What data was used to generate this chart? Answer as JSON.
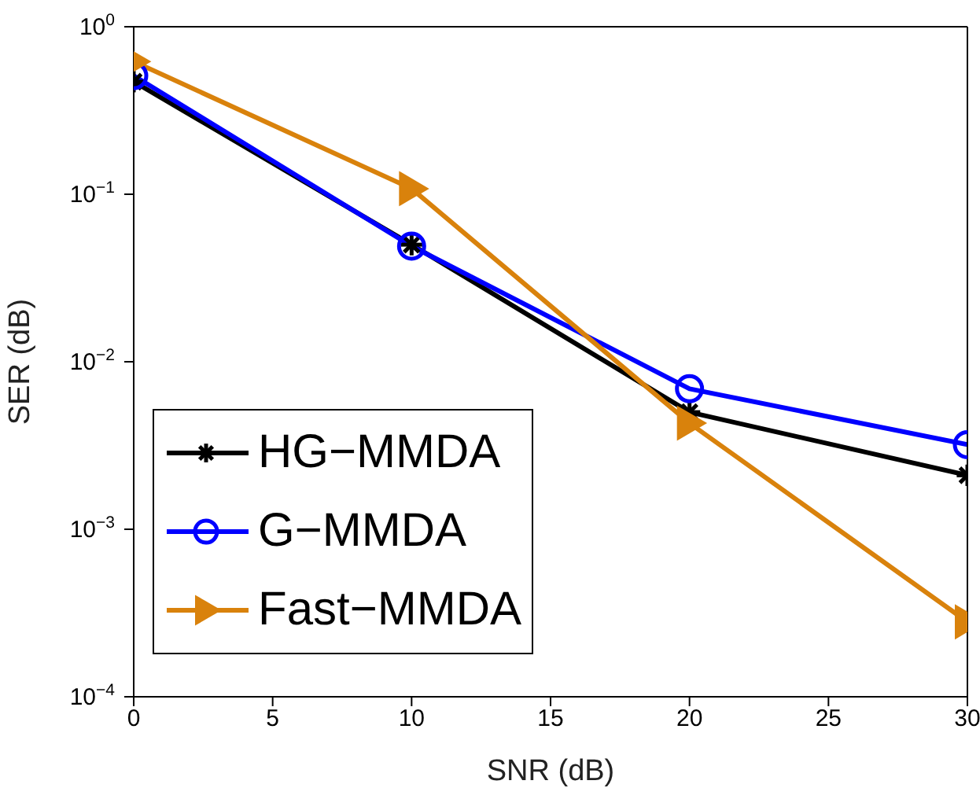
{
  "chart_data": {
    "type": "line",
    "xlabel": "SNR (dB)",
    "ylabel": "SER (dB)",
    "log": "y",
    "x": [
      0,
      10,
      20,
      30
    ],
    "xlim": [
      0,
      30
    ],
    "xticks": [
      0,
      5,
      10,
      15,
      20,
      25,
      30
    ],
    "ylim": [
      0.0001,
      1
    ],
    "yticks": [
      {
        "value": 0.0001,
        "label": "10$^{−4}$"
      },
      {
        "value": 0.001,
        "label": "10$^{−3}$"
      },
      {
        "value": 0.01,
        "label": "10$^{−2}$"
      },
      {
        "value": 0.1,
        "label": "10$^{−1}$"
      },
      {
        "value": 1,
        "label": "10$^{0}$"
      }
    ],
    "grid": false,
    "legend": "bottom left",
    "line_style": "solid",
    "series": [
      {
        "name": "HG−MMDA",
        "color": "#000000",
        "marker": "cross",
        "values": [
          0.47,
          0.05,
          0.005,
          0.0021
        ]
      },
      {
        "name": "G−MMDA",
        "color": "#0000ff",
        "marker": "circle",
        "values": [
          0.51,
          0.049,
          0.0069,
          0.0032
        ]
      },
      {
        "name": "Fast−MMDA",
        "color": "#d9820c",
        "marker": "triangle",
        "values": [
          0.62,
          0.108,
          0.0043,
          0.00028
        ]
      }
    ]
  }
}
